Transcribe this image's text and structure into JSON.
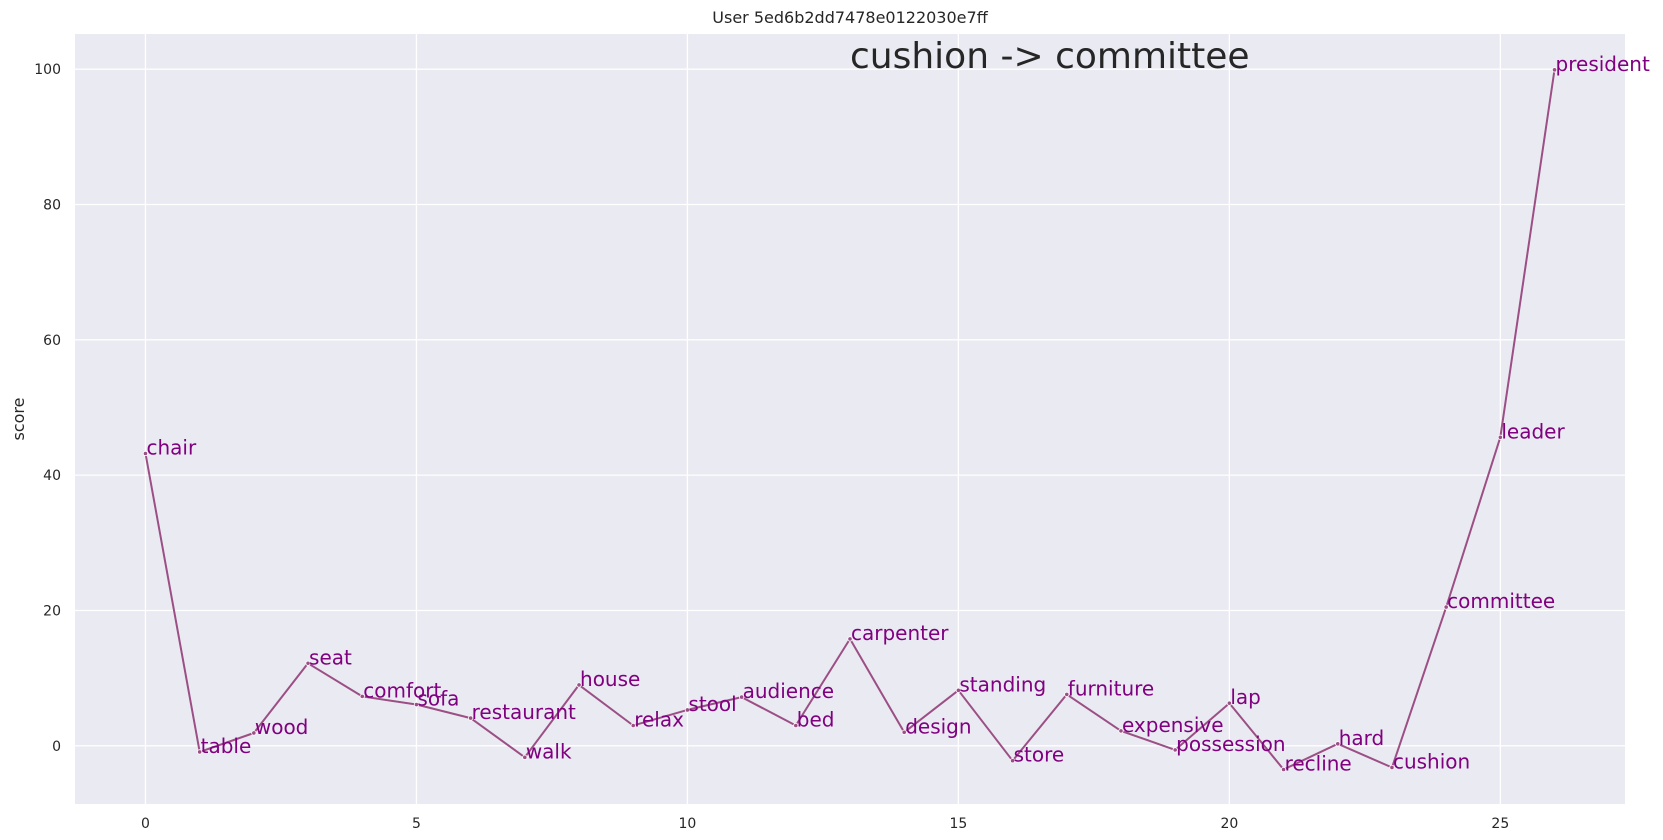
{
  "chart_data": {
    "type": "line",
    "title": "User 5ed6b2dd7478e0122030e7ff",
    "annotation": "cushion -> committee",
    "xlabel": "",
    "ylabel": "score",
    "xlim": [
      -1.3,
      27.3
    ],
    "ylim": [
      -8.6,
      105.2
    ],
    "xticks": [
      0,
      5,
      10,
      15,
      20,
      25
    ],
    "yticks": [
      0,
      20,
      40,
      60,
      80,
      100
    ],
    "grid": true,
    "line_color": "#9b4f85",
    "label_color": "#800080",
    "background_color": "#eaeaf2",
    "grid_color": "#ffffff",
    "series": [
      {
        "x": [
          0,
          1,
          2,
          3,
          4,
          5,
          6,
          7,
          8,
          9,
          10,
          11,
          12,
          13,
          14,
          15,
          16,
          17,
          18,
          19,
          20,
          21,
          22,
          23,
          24,
          25,
          26
        ],
        "y": [
          43.2,
          -0.9,
          1.9,
          12.2,
          7.3,
          6.1,
          4.1,
          -1.7,
          9.0,
          3.0,
          5.3,
          7.2,
          3.0,
          15.8,
          2.0,
          8.2,
          -2.2,
          7.6,
          2.2,
          -0.6,
          6.3,
          -3.5,
          0.3,
          -3.2,
          20.5,
          45.6,
          99.9
        ],
        "labels": [
          "chair",
          "table",
          "wood",
          "seat",
          "comfort",
          "sofa",
          "restaurant",
          "walk",
          "house",
          "relax",
          "stool",
          "audience",
          "bed",
          "carpenter",
          "design",
          "standing",
          "store",
          "furniture",
          "expensive",
          "possession",
          "lap",
          "recline",
          "hard",
          "cushion",
          "committee",
          "leader",
          "president"
        ]
      }
    ]
  }
}
